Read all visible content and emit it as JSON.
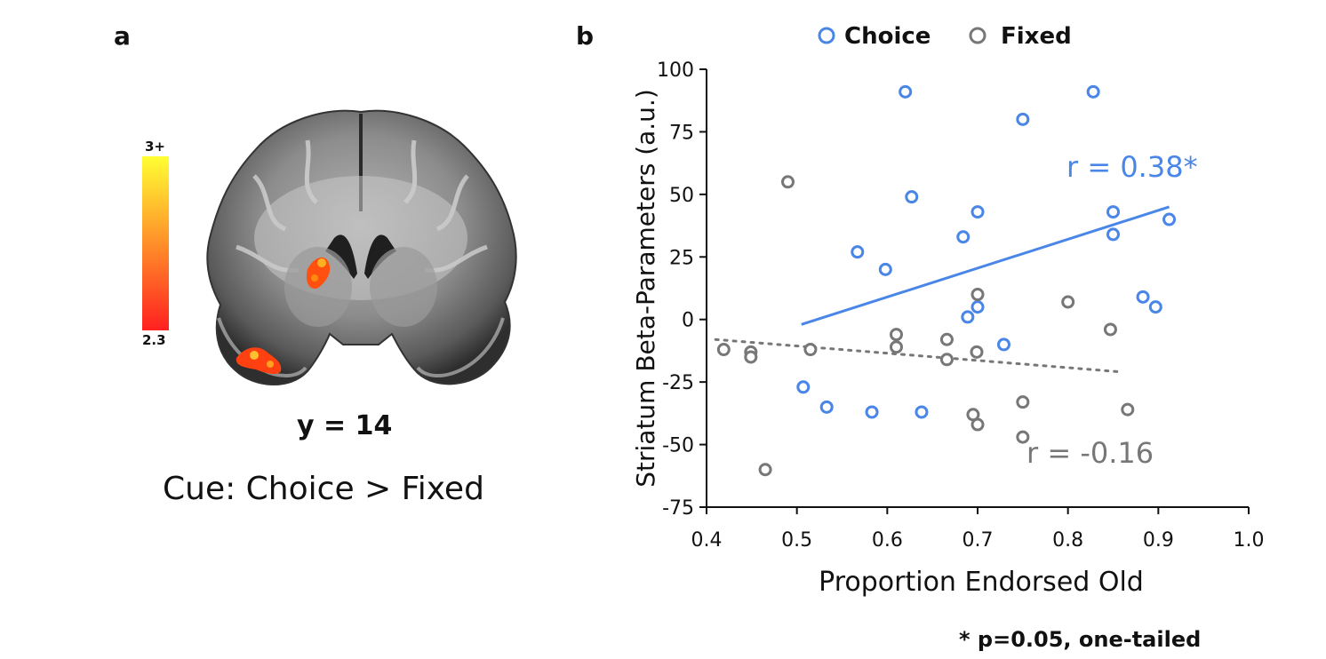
{
  "panel_a": {
    "label": "a",
    "colorbar": {
      "max_label": "3+",
      "min_label": "2.3",
      "top_color": "#ffff33",
      "bottom_color": "#ff2020"
    },
    "slice_label": "y = 14",
    "contrast_label": "Cue: Choice > Fixed"
  },
  "panel_b": {
    "label": "b",
    "footnote": "* p=0.05, one-tailed"
  },
  "chart_data": {
    "type": "scatter",
    "xlabel": "Proportion Endorsed Old",
    "ylabel": "Striatum Beta-Parameters (a.u.)",
    "xlim": [
      0.4,
      1.0
    ],
    "ylim": [
      -75,
      100
    ],
    "xticks": [
      "0.4",
      "0.5",
      "0.6",
      "0.7",
      "0.8",
      "0.9",
      "1.0"
    ],
    "yticks": [
      "100",
      "75",
      "50",
      "25",
      "0",
      "-25",
      "-50",
      "-75"
    ],
    "legend_position": "top",
    "series": [
      {
        "name": "Choice",
        "color": "#4a86e8",
        "annotation": "r = 0.38*",
        "fit": {
          "x": [
            0.505,
            0.912
          ],
          "y": [
            -2,
            45
          ],
          "style": "solid"
        },
        "points": [
          {
            "x": 0.62,
            "y": 91
          },
          {
            "x": 0.828,
            "y": 91
          },
          {
            "x": 0.75,
            "y": 80
          },
          {
            "x": 0.627,
            "y": 49
          },
          {
            "x": 0.7,
            "y": 43
          },
          {
            "x": 0.85,
            "y": 43
          },
          {
            "x": 0.912,
            "y": 40
          },
          {
            "x": 0.85,
            "y": 34
          },
          {
            "x": 0.684,
            "y": 33
          },
          {
            "x": 0.567,
            "y": 27
          },
          {
            "x": 0.598,
            "y": 20
          },
          {
            "x": 0.883,
            "y": 9
          },
          {
            "x": 0.7,
            "y": 5
          },
          {
            "x": 0.897,
            "y": 5
          },
          {
            "x": 0.689,
            "y": 1
          },
          {
            "x": 0.729,
            "y": -10
          },
          {
            "x": 0.507,
            "y": -27
          },
          {
            "x": 0.533,
            "y": -35
          },
          {
            "x": 0.583,
            "y": -37
          },
          {
            "x": 0.638,
            "y": -37
          }
        ]
      },
      {
        "name": "Fixed",
        "color": "#777777",
        "annotation": "r = -0.16",
        "fit": {
          "x": [
            0.41,
            0.86
          ],
          "y": [
            -8,
            -21
          ],
          "style": "dotted"
        },
        "points": [
          {
            "x": 0.49,
            "y": 55
          },
          {
            "x": 0.7,
            "y": 10
          },
          {
            "x": 0.8,
            "y": 7
          },
          {
            "x": 0.61,
            "y": -6
          },
          {
            "x": 0.666,
            "y": -8
          },
          {
            "x": 0.847,
            "y": -4
          },
          {
            "x": 0.419,
            "y": -12
          },
          {
            "x": 0.449,
            "y": -13
          },
          {
            "x": 0.449,
            "y": -15
          },
          {
            "x": 0.515,
            "y": -12
          },
          {
            "x": 0.61,
            "y": -11
          },
          {
            "x": 0.699,
            "y": -13
          },
          {
            "x": 0.666,
            "y": -16
          },
          {
            "x": 0.75,
            "y": -33
          },
          {
            "x": 0.866,
            "y": -36
          },
          {
            "x": 0.695,
            "y": -38
          },
          {
            "x": 0.7,
            "y": -42
          },
          {
            "x": 0.75,
            "y": -47
          },
          {
            "x": 0.465,
            "y": -60
          }
        ]
      }
    ]
  }
}
